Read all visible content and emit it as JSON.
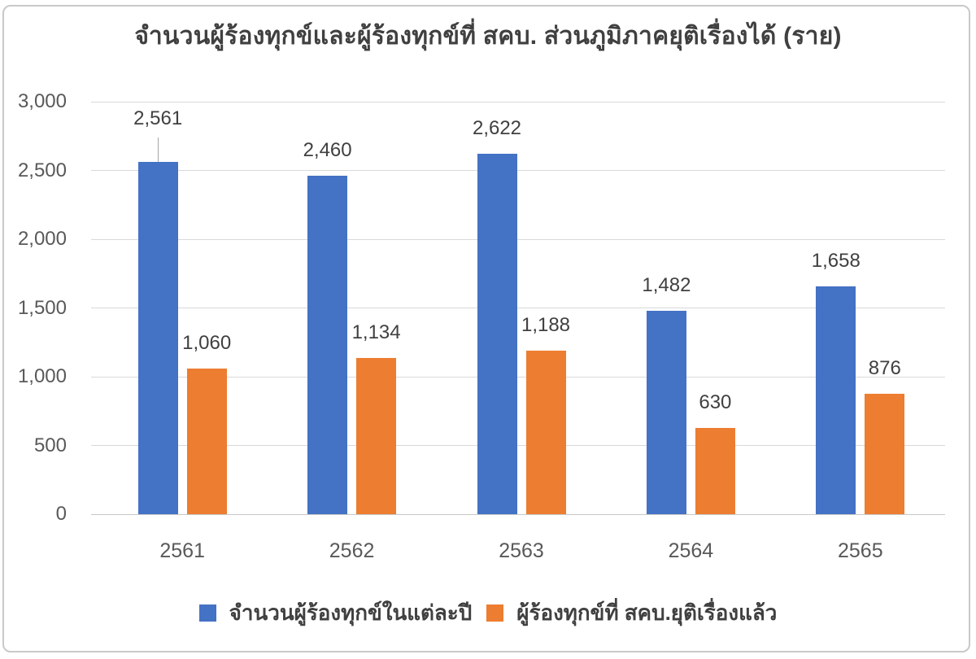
{
  "page": {
    "background": "#FFFFFF"
  },
  "styles": {
    "series_blue": "#4472C4",
    "series_orange": "#ED7D31",
    "title_color": "#404040",
    "data_label_color": "#404040",
    "tick_label_color": "#595959",
    "gridline_color": "#D9D9D9",
    "axis_line_color": "#C8C8C8",
    "leader_line_color": "#A6A6A6",
    "frame_border_color": "#C9C9C9"
  },
  "chart_data": {
    "type": "bar",
    "title": "จำนวนผู้ร้องทุกข์และผู้ร้องทุกข์ที่ สคบ. ส่วนภูมิภาคยุติเรื่องได้  (ราย)",
    "categories": [
      "2561",
      "2562",
      "2563",
      "2564",
      "2565"
    ],
    "series": [
      {
        "name": "จำนวนผู้ร้องทุกข์ในแต่ละปี",
        "color": "#4472C4",
        "values": [
          2561,
          2460,
          2622,
          1482,
          1658
        ],
        "labels": [
          "2,561",
          "2,460",
          "2,622",
          "1,482",
          "1,658"
        ]
      },
      {
        "name": "ผู้ร้องทุกข์ที่ สคบ.ยุติเรื่องแล้ว",
        "color": "#ED7D31",
        "values": [
          1060,
          1134,
          1188,
          630,
          876
        ],
        "labels": [
          "1,060",
          "1,134",
          "1,188",
          "630",
          "876"
        ]
      }
    ],
    "y_axis": {
      "min": 0,
      "max": 3000,
      "ticks": [
        {
          "label": "3,000",
          "value": 3000
        },
        {
          "label": "2,500",
          "value": 2500
        },
        {
          "label": "2,000",
          "value": 2000
        },
        {
          "label": "1,500",
          "value": 1500
        },
        {
          "label": "1,000",
          "value": 1000
        },
        {
          "label": "500",
          "value": 500
        },
        {
          "label": "0",
          "value": 0
        }
      ]
    },
    "xlabel": "",
    "ylabel": "",
    "grid": true,
    "legend_position": "bottom",
    "annotations": [
      {
        "type": "leader-line",
        "series_index": 0,
        "category_index": 0
      }
    ]
  }
}
